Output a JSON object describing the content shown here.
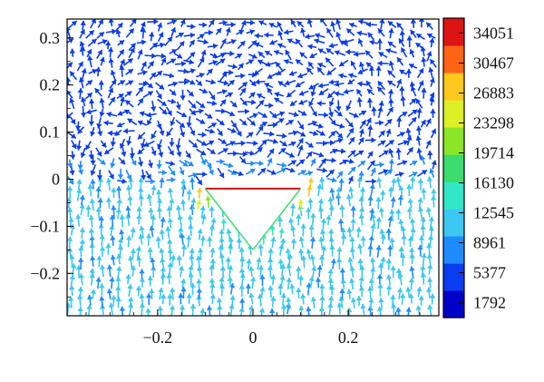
{
  "chart_data": {
    "type": "quiver",
    "title": "",
    "xlabel": "",
    "ylabel": "",
    "xlim": [
      -0.39,
      0.39
    ],
    "ylim": [
      -0.29,
      0.34
    ],
    "xticks": [
      {
        "value": -0.2,
        "label": "−0.2"
      },
      {
        "value": 0,
        "label": "0"
      },
      {
        "value": 0.2,
        "label": "0.2"
      }
    ],
    "yticks": [
      {
        "value": 0.3,
        "label": "0.3"
      },
      {
        "value": 0.2,
        "label": "0.2"
      },
      {
        "value": 0.1,
        "label": "0.1"
      },
      {
        "value": 0,
        "label": "0"
      },
      {
        "value": -0.1,
        "label": "−0.1"
      },
      {
        "value": -0.2,
        "label": "−0.2"
      }
    ],
    "grid": false,
    "obstacle": {
      "shape": "inverted-triangle",
      "vertices": [
        [
          -0.1,
          -0.02
        ],
        [
          0.1,
          -0.02
        ],
        [
          0.0,
          -0.15
        ]
      ]
    },
    "colorbar": {
      "min": 0,
      "max": 35843,
      "ticks": [
        34051,
        30467,
        26883,
        23298,
        19714,
        16130,
        12545,
        8961,
        5377,
        1792
      ],
      "colormap": [
        "#0000c8",
        "#0a3cf0",
        "#1e8cff",
        "#3cc8f0",
        "#32e6c8",
        "#3cdc6e",
        "#8ce628",
        "#dcf028",
        "#ffc81e",
        "#ff6414",
        "#dc1414"
      ]
    },
    "field_description": "Velocity vector field around a triangular obstacle; upward flow magnitude ~8961 below, circulating low-magnitude flow (~1792-5377) above, peak magnitude near the triangle corners."
  }
}
